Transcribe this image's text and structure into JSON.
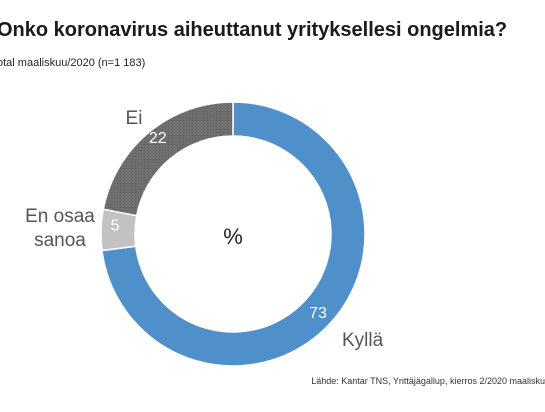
{
  "header": {
    "title": "Onko koronavirus aiheuttanut yrityksellesi ongelmia?",
    "subtitle": "otal maaliskuu/2020 (n=1 183)"
  },
  "footer": {
    "source": "Lähde: Kantar TNS, Yrittäjägallup, kierros 2/2020 maalisku"
  },
  "chart_data": {
    "type": "pie",
    "style": "donut",
    "center_label": "%",
    "categories": [
      "Kyllä",
      "En osaa sanoa",
      "Ei"
    ],
    "values": [
      73,
      5,
      22
    ],
    "colors": [
      "#4f8fca",
      "#c2c2c2",
      "#6f6f6f"
    ],
    "label_colors": [
      "#ffffff",
      "#ffffff",
      "#ffffff"
    ],
    "category_label_color": "#555555"
  }
}
